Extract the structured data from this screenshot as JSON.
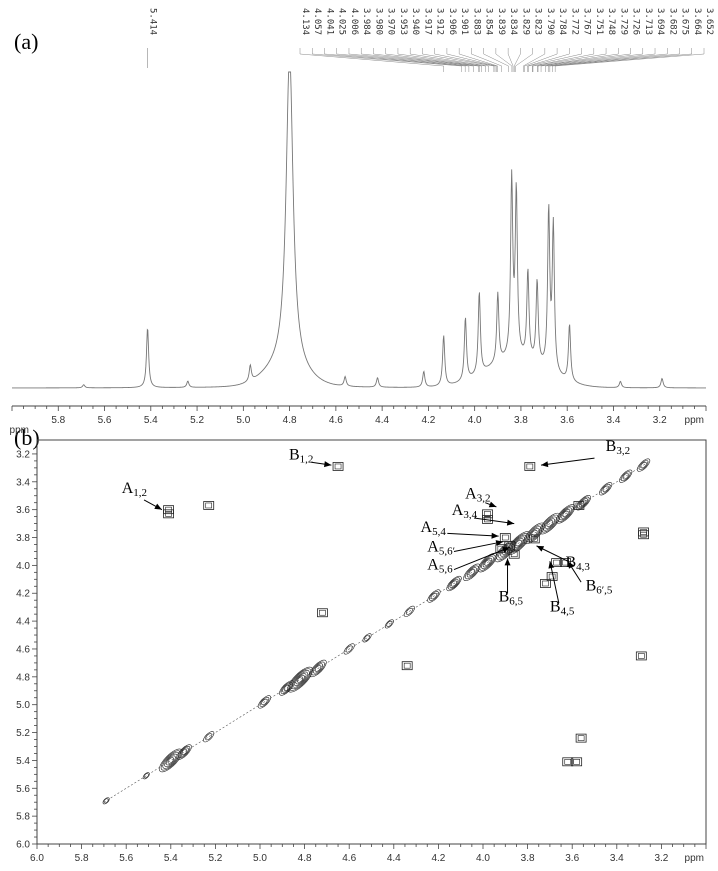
{
  "chart_data": [
    {
      "type": "line",
      "panel_label": "(a)",
      "xlabel": "ppm",
      "xlim": [
        6.0,
        3.0
      ],
      "xticks": [
        "5.8",
        "5.6",
        "5.4",
        "5.2",
        "5.0",
        "4.8",
        "4.6",
        "4.4",
        "4.2",
        "4.0",
        "3.8",
        "3.6",
        "3.4",
        "3.2"
      ],
      "peak_labels": [
        "5.414"
      ],
      "peak_labels_group": [
        "4.134",
        "4.057",
        "4.041",
        "4.025",
        "4.006",
        "3.984",
        "3.980",
        "3.970",
        "3.953",
        "3.940",
        "3.917",
        "3.912",
        "3.906",
        "3.901",
        "3.883",
        "3.854",
        "3.839",
        "3.834",
        "3.829",
        "3.823",
        "3.790",
        "3.784",
        "3.772",
        "3.767",
        "3.751",
        "3.748",
        "3.729",
        "3.726",
        "3.713",
        "3.694",
        "3.682",
        "3.675",
        "3.664",
        "3.652"
      ],
      "spectrum_peaks": [
        {
          "ppm": 5.69,
          "height": 0.01
        },
        {
          "ppm": 5.414,
          "height": 0.19
        },
        {
          "ppm": 5.24,
          "height": 0.02
        },
        {
          "ppm": 4.97,
          "height": 0.05
        },
        {
          "ppm": 4.8,
          "height": 1.0
        },
        {
          "ppm": 4.56,
          "height": 0.03
        },
        {
          "ppm": 4.42,
          "height": 0.03
        },
        {
          "ppm": 4.22,
          "height": 0.05
        },
        {
          "ppm": 4.134,
          "height": 0.16
        },
        {
          "ppm": 4.04,
          "height": 0.2
        },
        {
          "ppm": 3.98,
          "height": 0.26
        },
        {
          "ppm": 3.9,
          "height": 0.22
        },
        {
          "ppm": 3.84,
          "height": 0.56
        },
        {
          "ppm": 3.82,
          "height": 0.52
        },
        {
          "ppm": 3.77,
          "height": 0.28
        },
        {
          "ppm": 3.73,
          "height": 0.26
        },
        {
          "ppm": 3.68,
          "height": 0.5
        },
        {
          "ppm": 3.66,
          "height": 0.46
        },
        {
          "ppm": 3.59,
          "height": 0.18
        },
        {
          "ppm": 3.37,
          "height": 0.02
        },
        {
          "ppm": 3.19,
          "height": 0.03
        }
      ]
    },
    {
      "type": "scatter",
      "panel_label": "(b)",
      "subtype": "2D COSY contour map",
      "xlabel": "ppm",
      "ylabel": "ppm",
      "xlim": [
        6.0,
        3.0
      ],
      "ylim": [
        3.1,
        6.0
      ],
      "xticks": [
        "6.0",
        "5.8",
        "5.6",
        "5.4",
        "5.2",
        "5.0",
        "4.8",
        "4.6",
        "4.4",
        "4.2",
        "4.0",
        "3.8",
        "3.6",
        "3.4",
        "3.2"
      ],
      "yticks": [
        "3.2",
        "3.4",
        "3.6",
        "3.8",
        "4.0",
        "4.2",
        "4.4",
        "4.6",
        "4.8",
        "5.0",
        "5.2",
        "5.4",
        "5.6",
        "5.8",
        "6.0"
      ],
      "diagonal_peaks": [
        {
          "x": 5.69,
          "y": 5.69,
          "size": 0.2
        },
        {
          "x": 5.51,
          "y": 5.51,
          "size": 0.2
        },
        {
          "x": 5.4,
          "y": 5.4,
          "size": 1.0
        },
        {
          "x": 5.34,
          "y": 5.34,
          "size": 0.6
        },
        {
          "x": 5.23,
          "y": 5.23,
          "size": 0.4
        },
        {
          "x": 4.98,
          "y": 4.98,
          "size": 0.5
        },
        {
          "x": 4.88,
          "y": 4.88,
          "size": 0.6
        },
        {
          "x": 4.82,
          "y": 4.82,
          "size": 1.1
        },
        {
          "x": 4.74,
          "y": 4.74,
          "size": 0.7
        },
        {
          "x": 4.6,
          "y": 4.6,
          "size": 0.4
        },
        {
          "x": 4.52,
          "y": 4.52,
          "size": 0.3
        },
        {
          "x": 4.42,
          "y": 4.42,
          "size": 0.3
        },
        {
          "x": 4.33,
          "y": 4.33,
          "size": 0.4
        },
        {
          "x": 4.22,
          "y": 4.22,
          "size": 0.5
        },
        {
          "x": 4.13,
          "y": 4.13,
          "size": 0.6
        },
        {
          "x": 4.05,
          "y": 4.05,
          "size": 0.7
        },
        {
          "x": 3.98,
          "y": 3.98,
          "size": 0.8
        },
        {
          "x": 3.9,
          "y": 3.9,
          "size": 0.9
        },
        {
          "x": 3.84,
          "y": 3.84,
          "size": 1.0
        },
        {
          "x": 3.77,
          "y": 3.77,
          "size": 0.9
        },
        {
          "x": 3.7,
          "y": 3.7,
          "size": 0.9
        },
        {
          "x": 3.63,
          "y": 3.63,
          "size": 0.8
        },
        {
          "x": 3.55,
          "y": 3.55,
          "size": 0.6
        },
        {
          "x": 3.45,
          "y": 3.45,
          "size": 0.5
        },
        {
          "x": 3.36,
          "y": 3.36,
          "size": 0.5
        },
        {
          "x": 3.28,
          "y": 3.28,
          "size": 0.5
        }
      ],
      "cross_peaks": [
        {
          "x": 5.41,
          "y": 3.6
        },
        {
          "x": 5.41,
          "y": 3.63
        },
        {
          "x": 4.65,
          "y": 3.29
        },
        {
          "x": 3.29,
          "y": 4.65
        },
        {
          "x": 3.62,
          "y": 5.41
        },
        {
          "x": 3.58,
          "y": 5.41
        },
        {
          "x": 3.56,
          "y": 5.24
        },
        {
          "x": 5.23,
          "y": 3.57
        },
        {
          "x": 3.98,
          "y": 3.63
        },
        {
          "x": 3.98,
          "y": 3.67
        },
        {
          "x": 3.9,
          "y": 3.8
        },
        {
          "x": 3.88,
          "y": 3.86
        },
        {
          "x": 3.67,
          "y": 3.98
        },
        {
          "x": 3.63,
          "y": 3.98
        },
        {
          "x": 3.77,
          "y": 3.81
        },
        {
          "x": 3.86,
          "y": 3.92
        },
        {
          "x": 3.92,
          "y": 3.88
        },
        {
          "x": 3.79,
          "y": 3.29
        },
        {
          "x": 3.57,
          "y": 3.57
        },
        {
          "x": 4.34,
          "y": 4.72
        },
        {
          "x": 4.72,
          "y": 4.34
        },
        {
          "x": 3.28,
          "y": 3.78
        },
        {
          "x": 3.28,
          "y": 3.76
        },
        {
          "x": 3.69,
          "y": 4.08
        },
        {
          "x": 3.72,
          "y": 4.13
        }
      ],
      "annotations": [
        {
          "main": "A",
          "sub": "1,2"
        },
        {
          "main": "B",
          "sub": "1,2"
        },
        {
          "main": "B",
          "sub": "3,2"
        },
        {
          "main": "A",
          "sub": "3,2"
        },
        {
          "main": "A",
          "sub": "3,4"
        },
        {
          "main": "A",
          "sub": "5,4"
        },
        {
          "main": "A",
          "sub": "5,6′"
        },
        {
          "main": "A",
          "sub": "5,6"
        },
        {
          "main": "B",
          "sub": "4,3"
        },
        {
          "main": "B",
          "sub": "6′,5"
        },
        {
          "main": "B",
          "sub": "6,5"
        },
        {
          "main": "B",
          "sub": "4,5"
        }
      ]
    }
  ]
}
